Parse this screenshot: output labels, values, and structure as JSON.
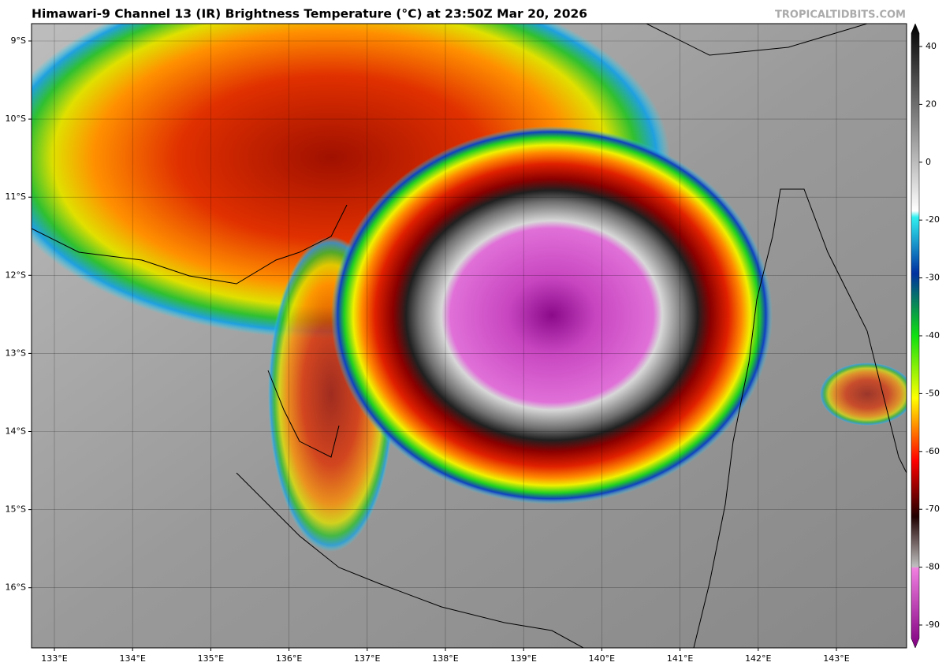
{
  "header": {
    "title": "Himawari-9 Channel 13 (IR) Brightness Temperature (°C) at 23:50Z Mar 20, 2026",
    "credit": "TROPICALTIDBITS.COM"
  },
  "map": {
    "lat_labels": [
      "9°S",
      "10°S",
      "11°S",
      "12°S",
      "13°S",
      "14°S",
      "15°S",
      "16°S"
    ],
    "lon_labels": [
      "133°E",
      "134°E",
      "135°E",
      "136°E",
      "137°E",
      "138°E",
      "139°E",
      "140°E",
      "141°E",
      "142°E",
      "143°E"
    ]
  },
  "colorbar": {
    "ticks": [
      40,
      20,
      0,
      -20,
      -30,
      -40,
      -50,
      -60,
      -70,
      -80,
      -90
    ]
  }
}
